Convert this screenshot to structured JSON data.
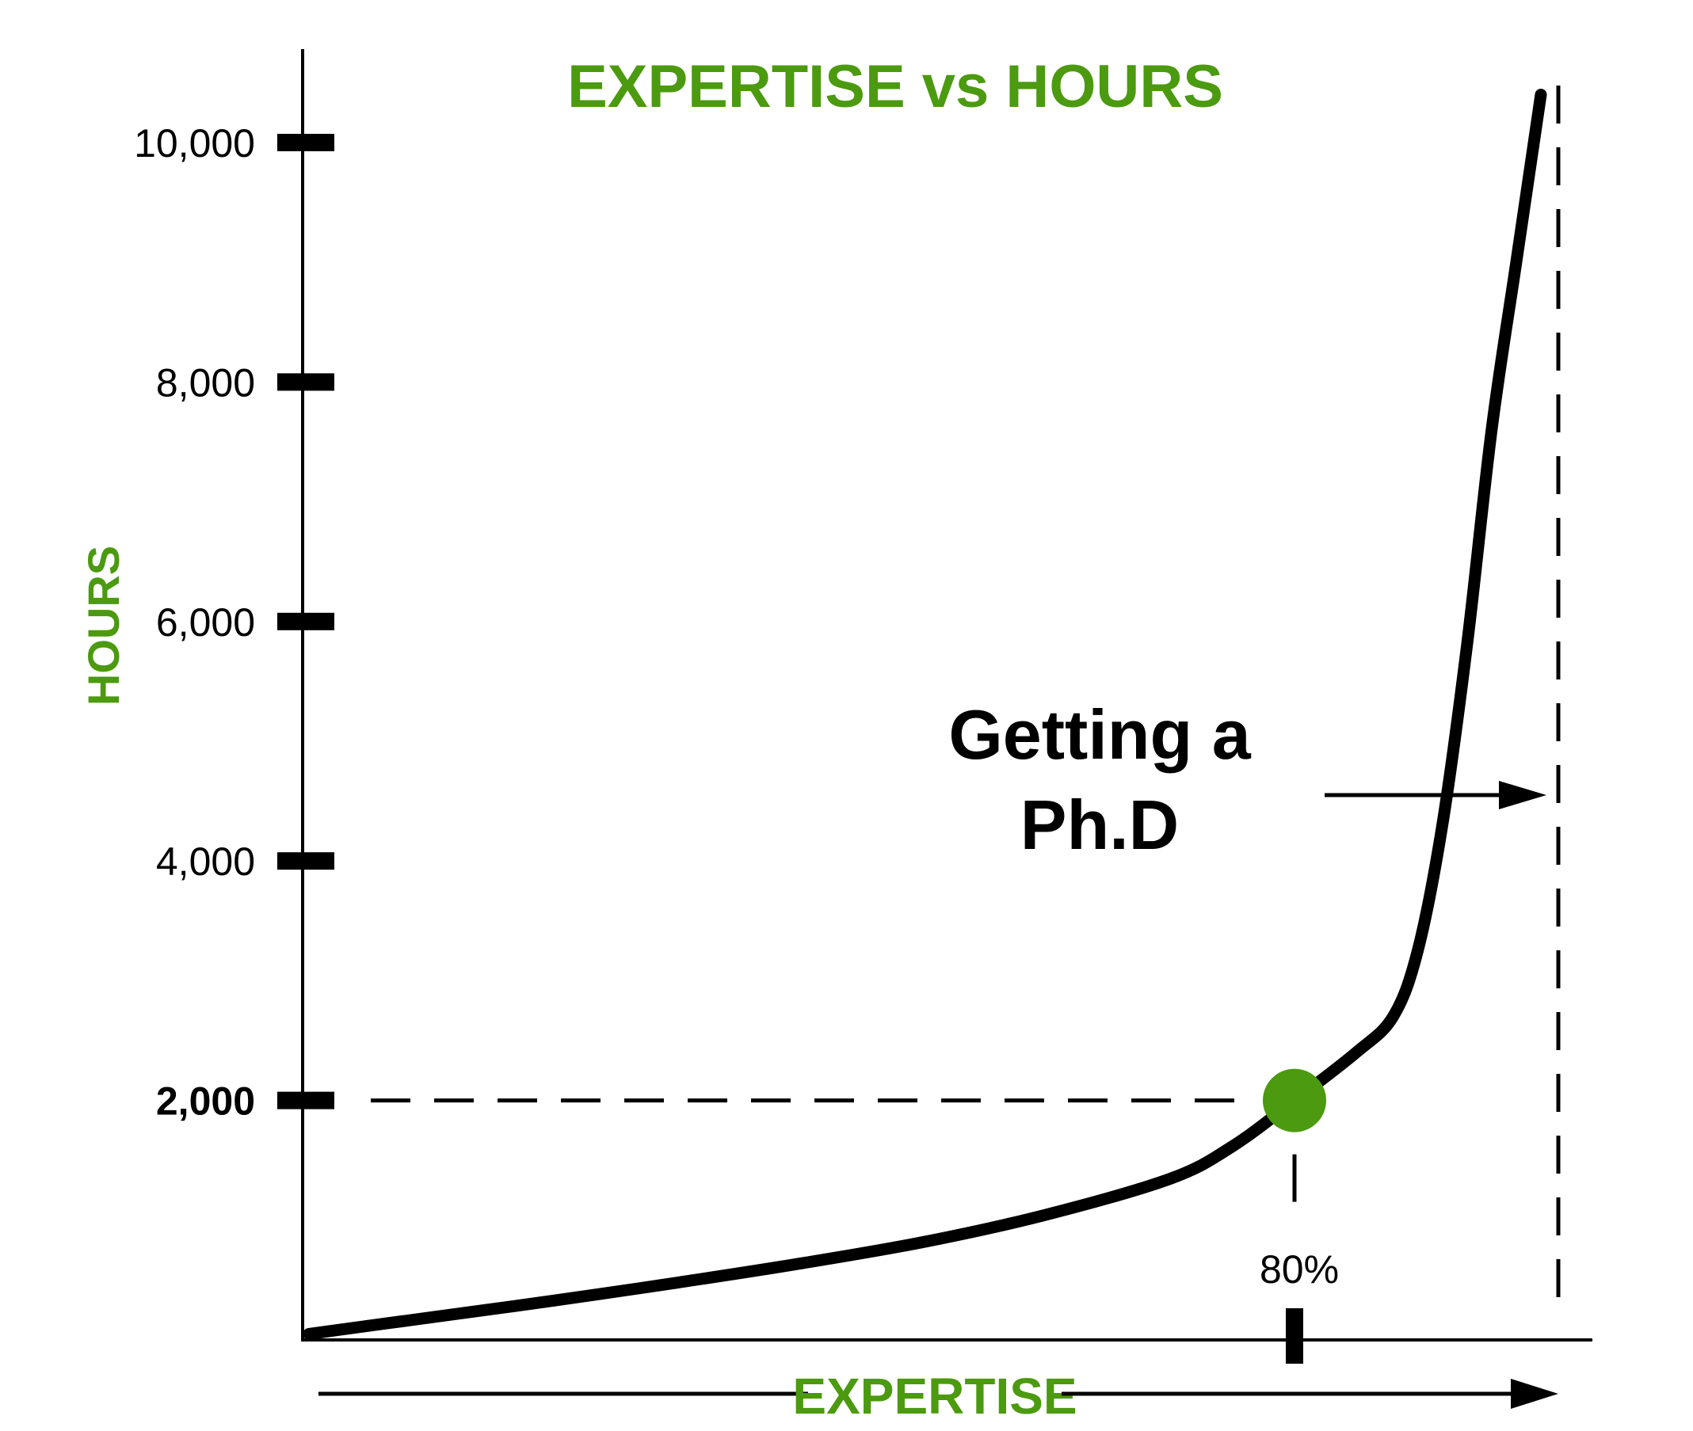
{
  "chart_data": {
    "type": "line",
    "title": "EXPERTISE vs HOURS",
    "xlabel": "EXPERTISE",
    "ylabel": "HOURS",
    "x_unit": "percent",
    "ylim": [
      0,
      10500
    ],
    "yticks": [
      {
        "value": 2000,
        "label": "2,000"
      },
      {
        "value": 4000,
        "label": "4,000"
      },
      {
        "value": 6000,
        "label": "6,000"
      },
      {
        "value": 8000,
        "label": "8,000"
      },
      {
        "value": 10000,
        "label": "10,000"
      }
    ],
    "series": [
      {
        "x": [
          0,
          10,
          20,
          30,
          40,
          50,
          60,
          70,
          75,
          80,
          85,
          88,
          90,
          92,
          94,
          96,
          98,
          100
        ],
        "y": [
          50,
          190,
          330,
          480,
          640,
          820,
          1050,
          1350,
          1620,
          2000,
          2400,
          2700,
          3250,
          4300,
          5800,
          7600,
          9000,
          10400
        ]
      }
    ],
    "highlight_point": {
      "x": 80,
      "y": 2000,
      "color": "#4b9a0f"
    },
    "x_marker": {
      "x": 80,
      "label": "80%"
    },
    "annotation": {
      "line1": "Getting a",
      "line2": "Ph.D"
    },
    "colors": {
      "accent": "#4b9a0f",
      "line": "#000000"
    }
  }
}
